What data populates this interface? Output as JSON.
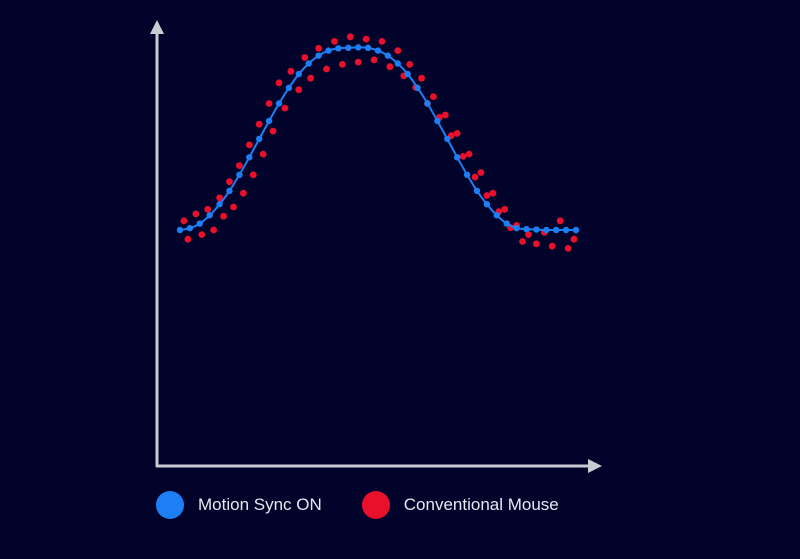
{
  "chart_data": {
    "type": "scatter",
    "title": "",
    "xlabel": "",
    "ylabel": "",
    "xlim": [
      0,
      1
    ],
    "ylim": [
      0,
      1
    ],
    "grid": false,
    "legend_position": "bottom-left",
    "series": [
      {
        "name": "Motion Sync ON",
        "color": "#1d7ff5",
        "style": "line+points",
        "x": [
          0.0,
          0.025,
          0.05,
          0.075,
          0.1,
          0.125,
          0.15,
          0.175,
          0.2,
          0.225,
          0.25,
          0.275,
          0.3,
          0.325,
          0.35,
          0.375,
          0.4,
          0.425,
          0.45,
          0.475,
          0.5,
          0.525,
          0.55,
          0.575,
          0.6,
          0.625,
          0.65,
          0.675,
          0.7,
          0.725,
          0.75,
          0.775,
          0.8,
          0.825,
          0.85,
          0.875,
          0.9,
          0.925,
          0.95,
          0.975,
          1.0
        ],
        "y": [
          0.5,
          0.504,
          0.514,
          0.532,
          0.556,
          0.585,
          0.62,
          0.658,
          0.698,
          0.737,
          0.775,
          0.809,
          0.839,
          0.862,
          0.879,
          0.89,
          0.895,
          0.896,
          0.897,
          0.896,
          0.89,
          0.879,
          0.862,
          0.839,
          0.809,
          0.775,
          0.737,
          0.698,
          0.658,
          0.62,
          0.585,
          0.556,
          0.532,
          0.514,
          0.504,
          0.502,
          0.501,
          0.5,
          0.5,
          0.5,
          0.5
        ]
      },
      {
        "name": "Conventional Mouse",
        "color": "#e8102a",
        "style": "points",
        "x": [
          0.01,
          0.02,
          0.04,
          0.055,
          0.07,
          0.085,
          0.1,
          0.11,
          0.125,
          0.135,
          0.15,
          0.16,
          0.175,
          0.185,
          0.2,
          0.21,
          0.225,
          0.235,
          0.25,
          0.265,
          0.28,
          0.3,
          0.315,
          0.33,
          0.35,
          0.37,
          0.39,
          0.41,
          0.43,
          0.45,
          0.47,
          0.49,
          0.51,
          0.53,
          0.55,
          0.565,
          0.58,
          0.595,
          0.61,
          0.625,
          0.64,
          0.655,
          0.67,
          0.685,
          0.7,
          0.715,
          0.73,
          0.745,
          0.76,
          0.775,
          0.79,
          0.805,
          0.82,
          0.835,
          0.85,
          0.865,
          0.88,
          0.9,
          0.92,
          0.94,
          0.96,
          0.98,
          0.995
        ],
        "y": [
          0.52,
          0.48,
          0.535,
          0.49,
          0.545,
          0.5,
          0.57,
          0.53,
          0.605,
          0.55,
          0.64,
          0.58,
          0.685,
          0.62,
          0.73,
          0.665,
          0.775,
          0.715,
          0.82,
          0.765,
          0.845,
          0.805,
          0.875,
          0.83,
          0.895,
          0.85,
          0.91,
          0.86,
          0.92,
          0.865,
          0.915,
          0.87,
          0.91,
          0.855,
          0.89,
          0.835,
          0.86,
          0.81,
          0.83,
          0.775,
          0.79,
          0.745,
          0.75,
          0.705,
          0.71,
          0.66,
          0.665,
          0.615,
          0.625,
          0.575,
          0.58,
          0.54,
          0.545,
          0.505,
          0.51,
          0.475,
          0.49,
          0.47,
          0.495,
          0.465,
          0.52,
          0.46,
          0.48
        ]
      }
    ]
  },
  "legend": {
    "items": [
      {
        "label": "Motion Sync ON",
        "color": "#1d7ff5"
      },
      {
        "label": "Conventional Mouse",
        "color": "#e8102a"
      }
    ]
  },
  "colors": {
    "background": "#02032a",
    "axis": "#c9cbd3"
  }
}
